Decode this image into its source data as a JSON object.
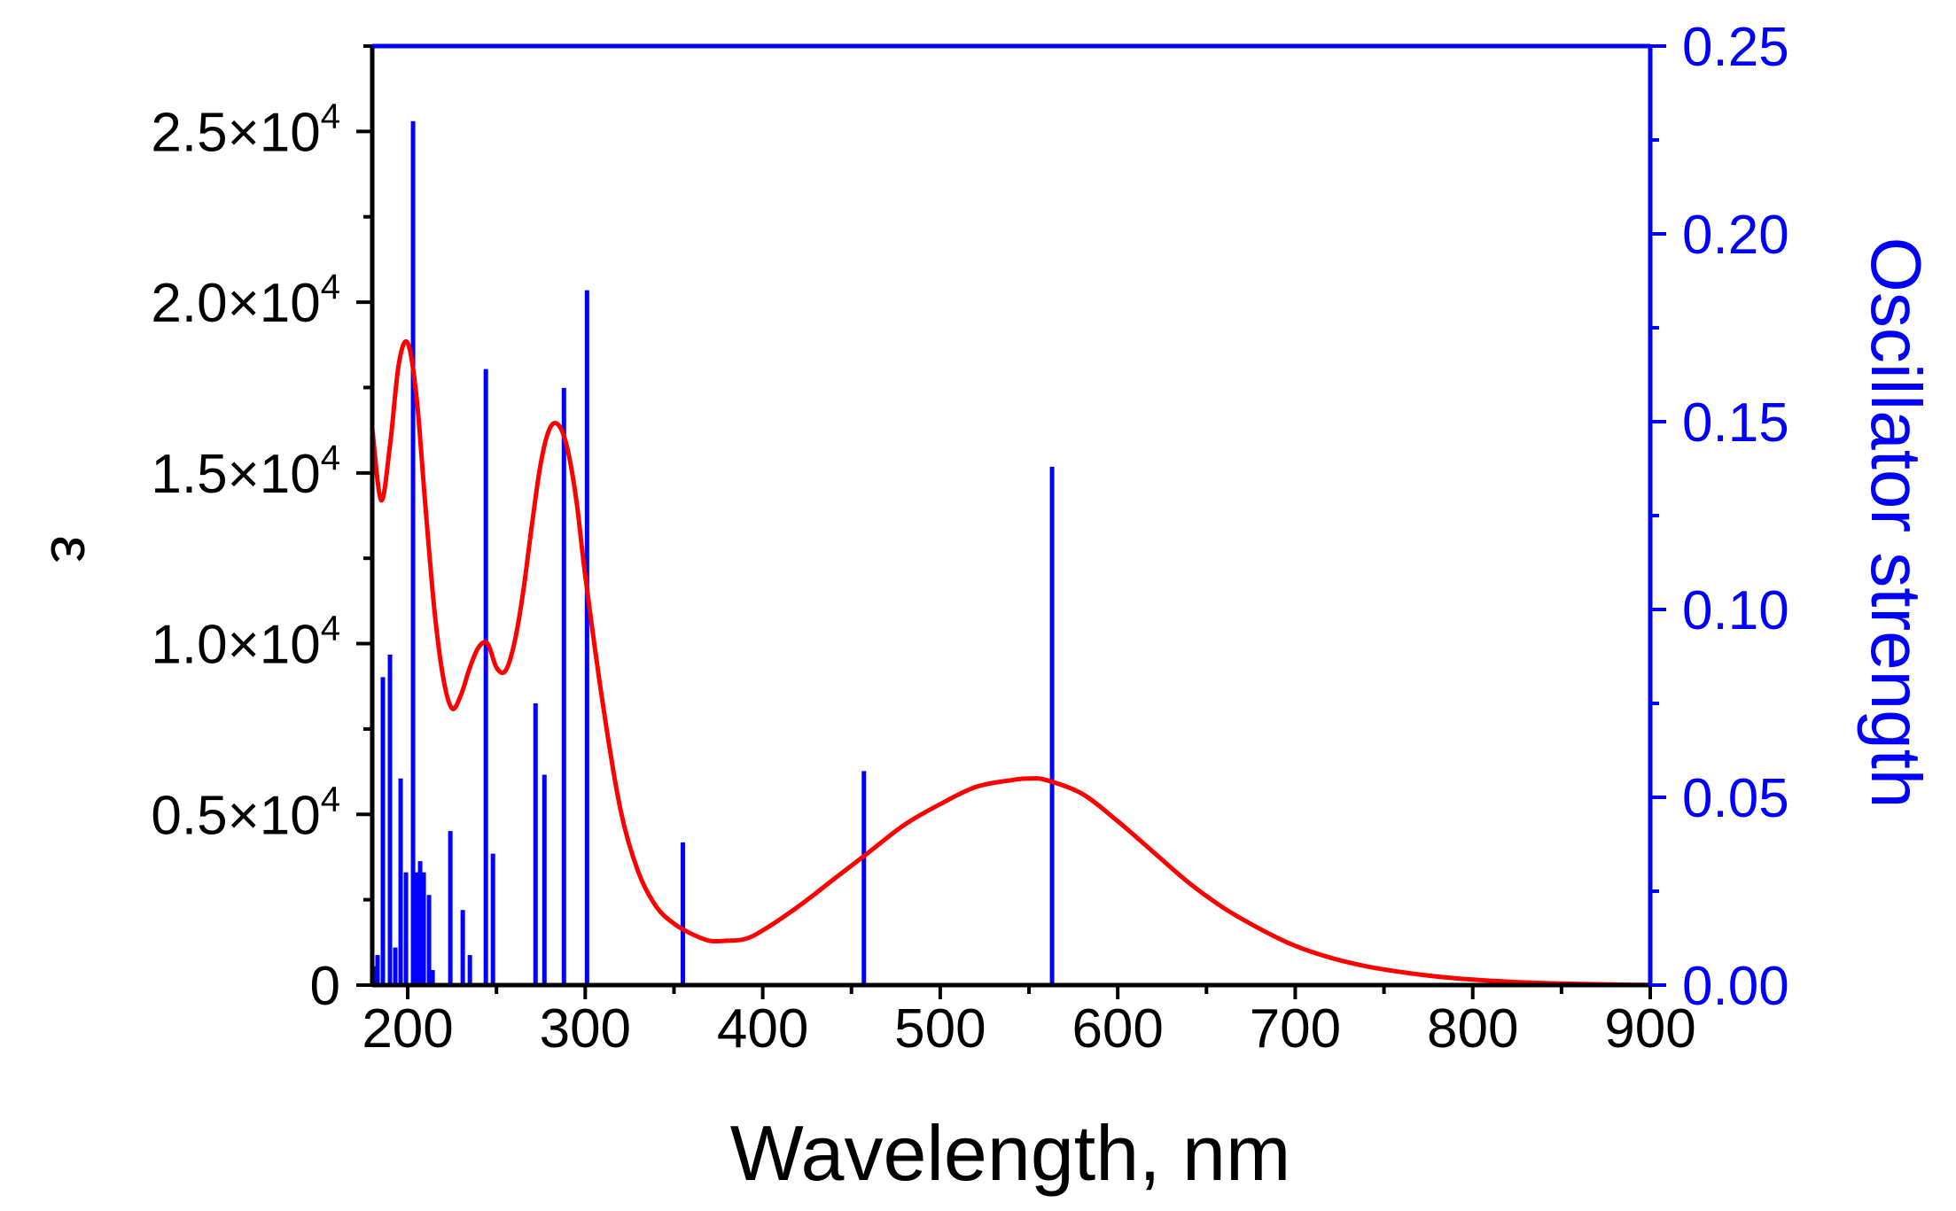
{
  "chart_data": {
    "type": "line+bar",
    "xlabel": "Wavelength, nm",
    "ylabel_left": "ε",
    "ylabel_right": "Oscillator strength",
    "xlim": [
      180,
      900
    ],
    "ylim_left": [
      0,
      27500
    ],
    "ylim_right": [
      0,
      0.25
    ],
    "x_ticks": [
      "200",
      "300",
      "400",
      "500",
      "600",
      "700",
      "800",
      "900"
    ],
    "y_left_ticks": [
      {
        "base": "0",
        "exp": ""
      },
      {
        "base": "0.5×10",
        "exp": "4"
      },
      {
        "base": "1.0×10",
        "exp": "4"
      },
      {
        "base": "1.5×10",
        "exp": "4"
      },
      {
        "base": "2.0×10",
        "exp": "4"
      },
      {
        "base": "2.5×10",
        "exp": "4"
      }
    ],
    "y_right_ticks": [
      "0.00",
      "0.05",
      "0.10",
      "0.15",
      "0.20",
      "0.25"
    ],
    "grid": false,
    "legend": "none",
    "colors": {
      "spectrum": "#ff0000",
      "sticks": "#0000ff",
      "left_axis": "#000000",
      "right_axis": "#0000ff"
    },
    "series": [
      {
        "kind": "line",
        "axis": "left",
        "x": [
          180,
          185,
          190,
          195,
          200,
          205,
          210,
          215,
          220,
          225,
          230,
          235,
          240,
          245,
          250,
          255,
          260,
          265,
          270,
          275,
          280,
          285,
          290,
          295,
          300,
          310,
          320,
          330,
          340,
          350,
          360,
          370,
          380,
          390,
          400,
          420,
          440,
          460,
          480,
          500,
          520,
          540,
          550,
          560,
          580,
          600,
          620,
          640,
          660,
          680,
          700,
          720,
          740,
          760,
          780,
          800,
          820,
          840,
          860,
          880,
          900
        ],
        "y": [
          16300,
          14200,
          15800,
          18200,
          18800,
          17200,
          14000,
          11000,
          9000,
          8100,
          8500,
          9300,
          9900,
          10000,
          9300,
          9200,
          10000,
          11500,
          13500,
          15300,
          16300,
          16400,
          15700,
          14200,
          12000,
          8200,
          5100,
          3300,
          2300,
          1800,
          1500,
          1300,
          1300,
          1350,
          1600,
          2300,
          3100,
          3900,
          4700,
          5300,
          5800,
          6000,
          6050,
          6000,
          5600,
          4800,
          3900,
          3000,
          2250,
          1650,
          1150,
          800,
          550,
          380,
          250,
          160,
          100,
          60,
          35,
          15,
          5
        ]
      },
      {
        "kind": "sticks",
        "axis": "right",
        "x": [
          181,
          183,
          186,
          190,
          193,
          196,
          199,
          203,
          205,
          207,
          209,
          212,
          214,
          224,
          231,
          235,
          244,
          248,
          272,
          277,
          288,
          301,
          355,
          457,
          563
        ],
        "y": [
          0.005,
          0.008,
          0.082,
          0.088,
          0.01,
          0.055,
          0.03,
          0.23,
          0.03,
          0.033,
          0.03,
          0.024,
          0.004,
          0.041,
          0.02,
          0.008,
          0.164,
          0.035,
          0.075,
          0.056,
          0.159,
          0.185,
          0.038,
          0.057,
          0.138
        ]
      }
    ]
  }
}
